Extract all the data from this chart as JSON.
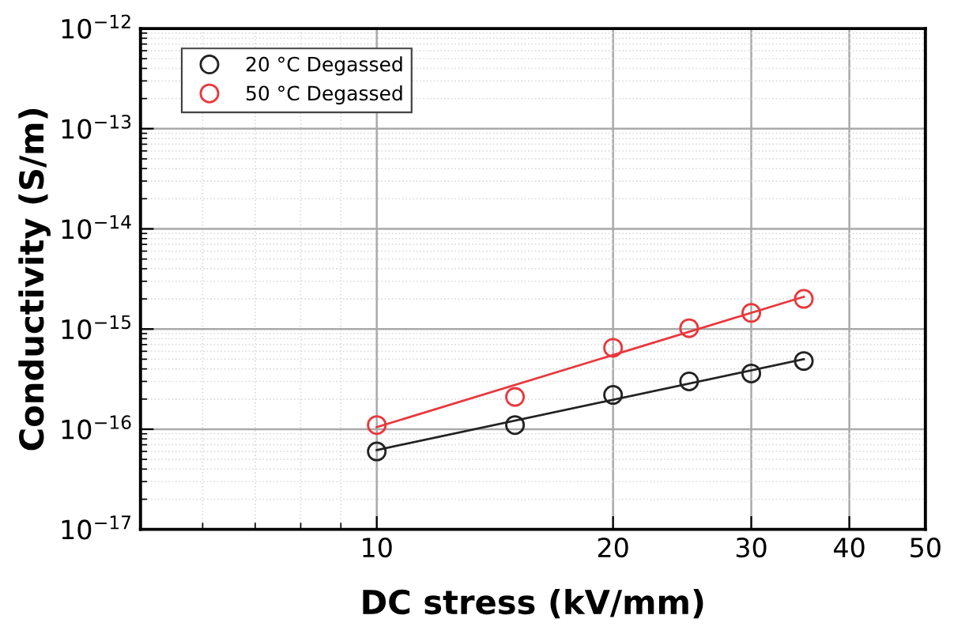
{
  "chart_data": {
    "type": "scatter",
    "xlabel": "DC stress (kV/mm)",
    "ylabel": "Conductivity (S/m)",
    "log": "xy",
    "grid": true,
    "legend": "top left",
    "xlim": [
      5,
      50
    ],
    "xticks": [
      10,
      20,
      30,
      40,
      50
    ],
    "ylim": [
      1e-17,
      1e-12
    ],
    "yticks": [
      {
        "value": 1e-17,
        "label": "10$^{−17}$"
      },
      {
        "value": 1e-16,
        "label": "10$^{−16}$"
      },
      {
        "value": 1e-15,
        "label": "10$^{−15}$"
      },
      {
        "value": 1e-14,
        "label": "10$^{−14}$"
      },
      {
        "value": 1e-13,
        "label": "10$^{−13}$"
      },
      {
        "value": 1e-12,
        "label": "10$^{−12}$"
      }
    ],
    "series": [
      {
        "name": "20 °C Degassed",
        "color": "#222222",
        "marker": "circle",
        "x": [
          10,
          15,
          20,
          25,
          30,
          35
        ],
        "values": [
          6e-17,
          1.1e-16,
          2.2e-16,
          3e-16,
          3.6e-16,
          4.8e-16
        ]
      },
      {
        "name": "50 °C Degassed",
        "color": "#e8383d",
        "marker": "circle",
        "x": [
          10,
          15,
          20,
          25,
          30,
          35
        ],
        "values": [
          1.1e-16,
          2.1e-16,
          6.5e-16,
          1.02e-15,
          1.45e-15,
          2e-15
        ]
      },
      {
        "type": "line",
        "color": "#222222",
        "x": [
          10,
          35
        ],
        "values": [
          6.2e-17,
          5e-16
        ]
      },
      {
        "type": "line",
        "color": "#e8383d",
        "x": [
          10,
          35
        ],
        "values": [
          1.05e-16,
          2.1e-15
        ]
      }
    ]
  }
}
